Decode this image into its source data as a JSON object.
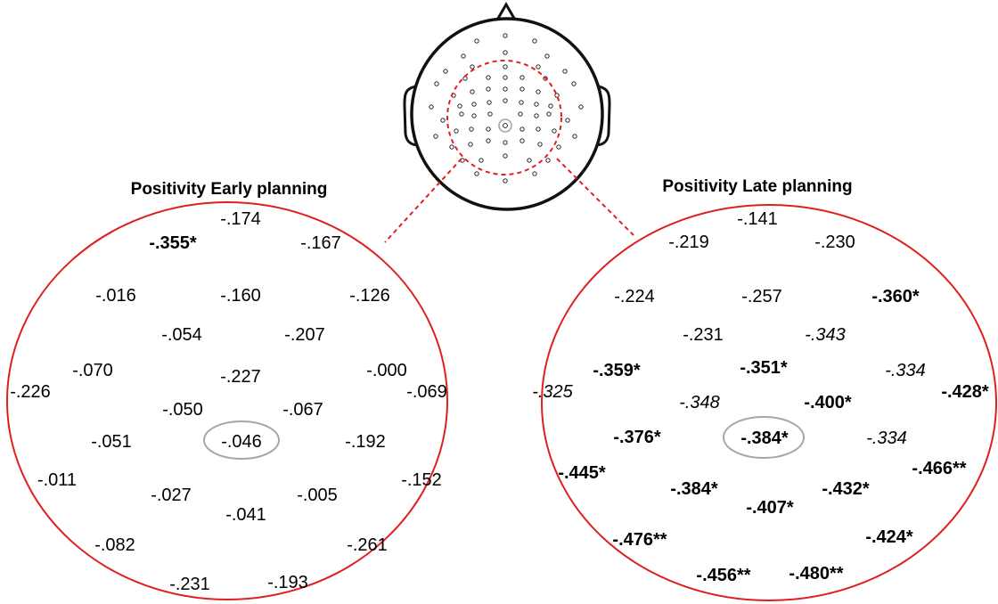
{
  "colors": {
    "panel_ring": "#e02020",
    "region_dash": "#e02020",
    "center_marker": "#a6a6a6",
    "head_outline": "#111111"
  },
  "head": {
    "electrode_count": 64
  },
  "left_panel": {
    "title": "Positivity Early planning",
    "values": [
      {
        "text": "-.174",
        "style": "normal"
      },
      {
        "text": "-.355*",
        "style": "bold"
      },
      {
        "text": "-.167",
        "style": "normal"
      },
      {
        "text": "-.016",
        "style": "normal"
      },
      {
        "text": "-.160",
        "style": "normal"
      },
      {
        "text": "-.126",
        "style": "normal"
      },
      {
        "text": "-.054",
        "style": "normal"
      },
      {
        "text": "-.207",
        "style": "normal"
      },
      {
        "text": "-.070",
        "style": "normal"
      },
      {
        "text": "-.226",
        "style": "normal"
      },
      {
        "text": "-.227",
        "style": "normal"
      },
      {
        "text": "-.000",
        "style": "normal"
      },
      {
        "text": "-.069",
        "style": "normal"
      },
      {
        "text": "-.050",
        "style": "normal"
      },
      {
        "text": "-.067",
        "style": "normal"
      },
      {
        "text": "-.051",
        "style": "normal"
      },
      {
        "text": "-.046",
        "style": "normal"
      },
      {
        "text": "-.192",
        "style": "normal"
      },
      {
        "text": "-.011",
        "style": "normal"
      },
      {
        "text": "-.152",
        "style": "normal"
      },
      {
        "text": "-.027",
        "style": "normal"
      },
      {
        "text": "-.005",
        "style": "normal"
      },
      {
        "text": "-.041",
        "style": "normal"
      },
      {
        "text": "-.082",
        "style": "normal"
      },
      {
        "text": "-.261",
        "style": "normal"
      },
      {
        "text": "-.231",
        "style": "normal"
      },
      {
        "text": "-.193",
        "style": "normal"
      }
    ]
  },
  "right_panel": {
    "title": "Positivity Late planning",
    "values": [
      {
        "text": "-.141",
        "style": "normal"
      },
      {
        "text": "-.219",
        "style": "normal"
      },
      {
        "text": "-.230",
        "style": "normal"
      },
      {
        "text": "-.224",
        "style": "normal"
      },
      {
        "text": "-.257",
        "style": "normal"
      },
      {
        "text": "-.360*",
        "style": "bold"
      },
      {
        "text": "-.231",
        "style": "normal"
      },
      {
        "text": "-.343",
        "style": "italic"
      },
      {
        "text": "-.359*",
        "style": "bold"
      },
      {
        "text": "-.351*",
        "style": "bold"
      },
      {
        "text": "-.334",
        "style": "italic"
      },
      {
        "text": "-.325",
        "style": "italic"
      },
      {
        "text": "-.428*",
        "style": "bold"
      },
      {
        "text": "-.348",
        "style": "italic"
      },
      {
        "text": "-.400*",
        "style": "bold"
      },
      {
        "text": "-.376*",
        "style": "bold"
      },
      {
        "text": "-.384*",
        "style": "bold"
      },
      {
        "text": "-.334",
        "style": "italic"
      },
      {
        "text": "-.445*",
        "style": "bold"
      },
      {
        "text": "-.466**",
        "style": "bold"
      },
      {
        "text": "-.384*",
        "style": "bold"
      },
      {
        "text": "-.432*",
        "style": "bold"
      },
      {
        "text": "-.407*",
        "style": "bold"
      },
      {
        "text": "-.476**",
        "style": "bold"
      },
      {
        "text": "-.424*",
        "style": "bold"
      },
      {
        "text": "-.456**",
        "style": "bold"
      },
      {
        "text": "-.480**",
        "style": "bold"
      }
    ]
  }
}
